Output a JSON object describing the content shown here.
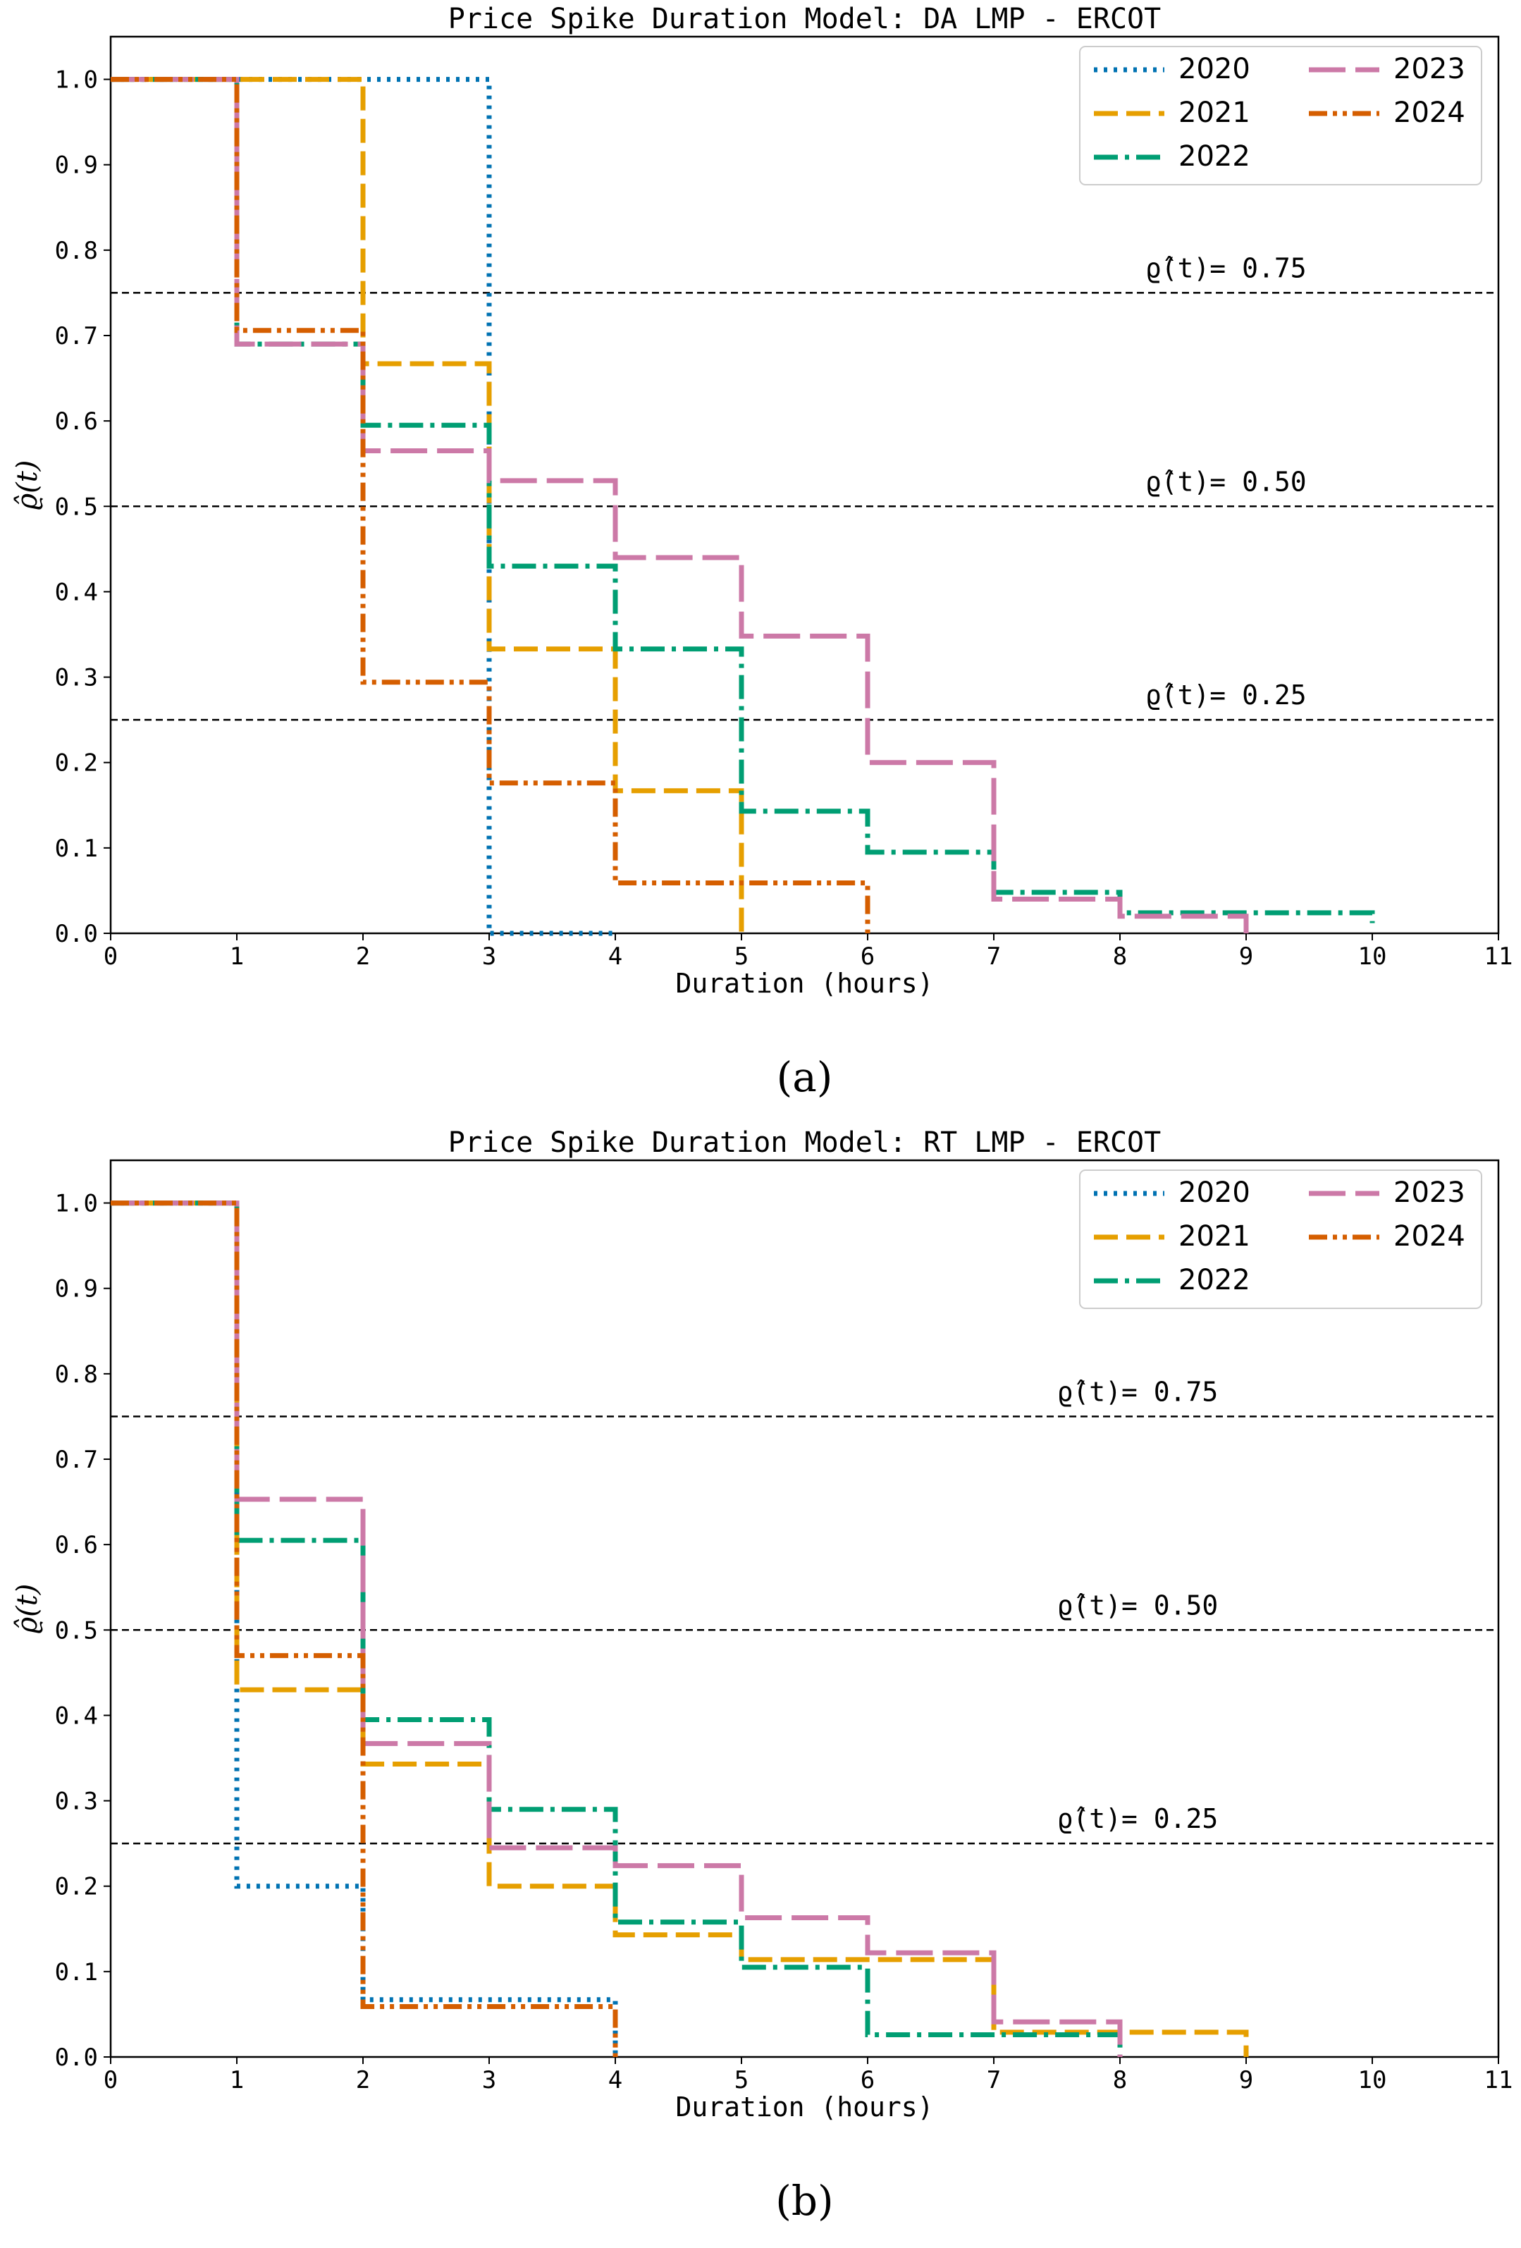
{
  "colors": {
    "2020": "#0072B2",
    "2021": "#E69F00",
    "2022": "#009E73",
    "2023": "#CC79A7",
    "2024": "#D55E00",
    "threshold": "#000000"
  },
  "chart_data": [
    {
      "type": "line",
      "subtype": "step",
      "panel_label": "(a)",
      "title": "Price Spike Duration Model: DA LMP - ERCOT",
      "xlabel": "Duration (hours)",
      "ylabel": "ϱ̂(t)",
      "xlim": [
        0,
        11
      ],
      "ylim": [
        0,
        1.05
      ],
      "xticks": [
        "0",
        "1",
        "2",
        "3",
        "4",
        "5",
        "6",
        "7",
        "8",
        "9",
        "10",
        "11"
      ],
      "yticks": [
        "0.0",
        "0.1",
        "0.2",
        "0.3",
        "0.4",
        "0.5",
        "0.6",
        "0.7",
        "0.8",
        "0.9",
        "1.0"
      ],
      "legend": {
        "position": "top-right",
        "columns": 2
      },
      "thresholds": [
        {
          "y": 0.75,
          "label": "ϱ̂(t)= 0.75",
          "label_x": 8.2
        },
        {
          "y": 0.5,
          "label": "ϱ̂(t)= 0.50",
          "label_x": 8.2
        },
        {
          "y": 0.25,
          "label": "ϱ̂(t)= 0.25",
          "label_x": 8.2
        }
      ],
      "series": [
        {
          "name": "2020",
          "style": "dotted",
          "x": [
            0,
            3,
            3,
            4,
            4
          ],
          "y": [
            1.0,
            1.0,
            0.0,
            0.0,
            0.0
          ]
        },
        {
          "name": "2021",
          "style": "dashed",
          "x": [
            0,
            2,
            2,
            3,
            3,
            4,
            4,
            5,
            5
          ],
          "y": [
            1.0,
            1.0,
            0.667,
            0.667,
            0.333,
            0.333,
            0.167,
            0.167,
            0.0
          ]
        },
        {
          "name": "2022",
          "style": "dashdot",
          "x": [
            0,
            1,
            1,
            2,
            2,
            3,
            3,
            4,
            4,
            5,
            5,
            6,
            6,
            7,
            7,
            8,
            8,
            10,
            10
          ],
          "y": [
            1.0,
            1.0,
            0.69,
            0.69,
            0.595,
            0.595,
            0.43,
            0.43,
            0.333,
            0.333,
            0.143,
            0.143,
            0.095,
            0.095,
            0.048,
            0.048,
            0.024,
            0.024,
            0.012
          ]
        },
        {
          "name": "2023",
          "style": "longdash",
          "x": [
            0,
            1,
            1,
            2,
            2,
            3,
            3,
            4,
            4,
            5,
            5,
            6,
            6,
            7,
            7,
            8,
            8,
            9,
            9
          ],
          "y": [
            1.0,
            1.0,
            0.69,
            0.69,
            0.565,
            0.565,
            0.53,
            0.53,
            0.44,
            0.44,
            0.348,
            0.348,
            0.2,
            0.2,
            0.04,
            0.04,
            0.02,
            0.02,
            0.0
          ]
        },
        {
          "name": "2024",
          "style": "dashdotdot",
          "x": [
            0,
            1,
            1,
            2,
            2,
            3,
            3,
            4,
            4,
            6,
            6
          ],
          "y": [
            1.0,
            1.0,
            0.706,
            0.706,
            0.294,
            0.294,
            0.176,
            0.176,
            0.059,
            0.059,
            0.0
          ]
        }
      ]
    },
    {
      "type": "line",
      "subtype": "step",
      "panel_label": "(b)",
      "title": "Price Spike Duration Model: RT LMP - ERCOT",
      "xlabel": "Duration (hours)",
      "ylabel": "ϱ̂(t)",
      "xlim": [
        0,
        11
      ],
      "ylim": [
        0,
        1.05
      ],
      "xticks": [
        "0",
        "1",
        "2",
        "3",
        "4",
        "5",
        "6",
        "7",
        "8",
        "9",
        "10",
        "11"
      ],
      "yticks": [
        "0.0",
        "0.1",
        "0.2",
        "0.3",
        "0.4",
        "0.5",
        "0.6",
        "0.7",
        "0.8",
        "0.9",
        "1.0"
      ],
      "legend": {
        "position": "top-right",
        "columns": 2
      },
      "thresholds": [
        {
          "y": 0.75,
          "label": "ϱ̂(t)= 0.75",
          "label_x": 7.5
        },
        {
          "y": 0.5,
          "label": "ϱ̂(t)= 0.50",
          "label_x": 7.5
        },
        {
          "y": 0.25,
          "label": "ϱ̂(t)= 0.25",
          "label_x": 7.5
        }
      ],
      "series": [
        {
          "name": "2020",
          "style": "dotted",
          "x": [
            0,
            1,
            1,
            2,
            2,
            4,
            4
          ],
          "y": [
            1.0,
            1.0,
            0.2,
            0.2,
            0.067,
            0.067,
            0.0
          ]
        },
        {
          "name": "2021",
          "style": "dashed",
          "x": [
            0,
            1,
            1,
            2,
            2,
            3,
            3,
            4,
            4,
            5,
            5,
            7,
            7,
            9,
            9
          ],
          "y": [
            1.0,
            1.0,
            0.43,
            0.43,
            0.343,
            0.343,
            0.2,
            0.2,
            0.143,
            0.143,
            0.114,
            0.114,
            0.029,
            0.029,
            0.0
          ]
        },
        {
          "name": "2022",
          "style": "dashdot",
          "x": [
            0,
            1,
            1,
            2,
            2,
            3,
            3,
            4,
            4,
            5,
            5,
            6,
            6,
            8,
            8
          ],
          "y": [
            1.0,
            1.0,
            0.605,
            0.605,
            0.395,
            0.395,
            0.29,
            0.29,
            0.158,
            0.158,
            0.105,
            0.105,
            0.026,
            0.026,
            0.0
          ]
        },
        {
          "name": "2023",
          "style": "longdash",
          "x": [
            0,
            1,
            1,
            2,
            2,
            3,
            3,
            4,
            4,
            5,
            5,
            6,
            6,
            7,
            7,
            8,
            8
          ],
          "y": [
            1.0,
            1.0,
            0.653,
            0.653,
            0.367,
            0.367,
            0.245,
            0.245,
            0.224,
            0.224,
            0.163,
            0.163,
            0.122,
            0.122,
            0.041,
            0.041,
            0.0
          ]
        },
        {
          "name": "2024",
          "style": "dashdotdot",
          "x": [
            0,
            1,
            1,
            2,
            2,
            4,
            4
          ],
          "y": [
            1.0,
            1.0,
            0.47,
            0.47,
            0.059,
            0.059,
            0.0
          ]
        }
      ]
    }
  ]
}
